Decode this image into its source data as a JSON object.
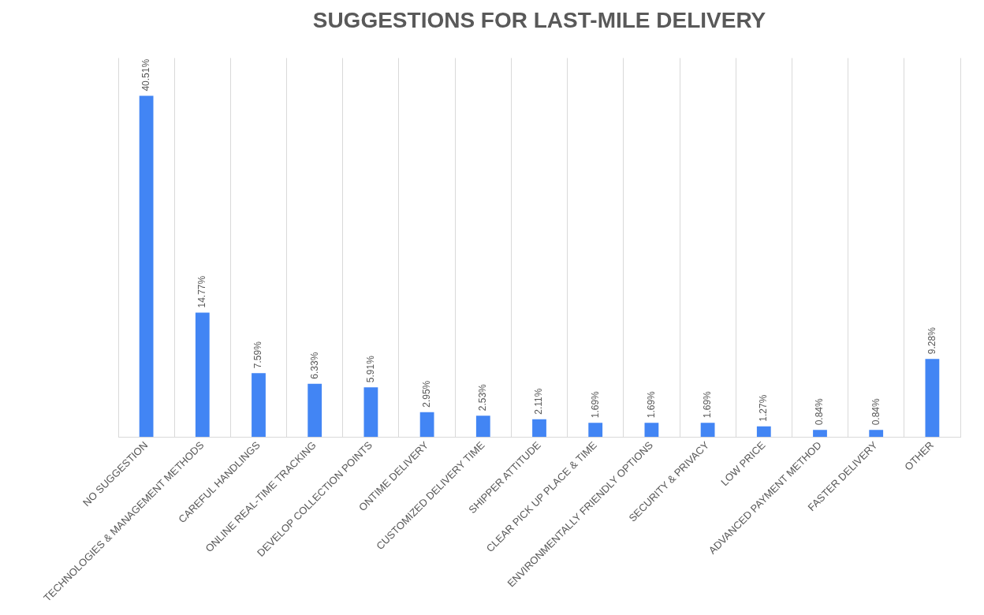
{
  "chart_data": {
    "type": "bar",
    "title": "SUGGESTIONS FOR LAST-MILE DELIVERY",
    "categories": [
      "NO SUGGESTION",
      "TECHNOLOGIES & MANAGEMENT METHODS",
      "CAREFUL HANDLINGS",
      "ONLINE REAL-TIME TRACKING",
      "DEVELOP COLLECTION POINTS",
      "ONTIME DELIVERY",
      "CUSTOMIZED DELIVERY TIME",
      "SHIPPER ATTITUDE",
      "CLEAR PICK UP PLACE & TIME",
      "ENVIRONMENTALLY FRIENDLY OPTIONS",
      "SECURITY & PRIVACY",
      "LOW PRICE",
      "ADVANCED PAYMENT METHOD",
      "FASTER DELIVERY",
      "OTHER"
    ],
    "values": [
      40.51,
      14.77,
      7.59,
      6.33,
      5.91,
      2.95,
      2.53,
      2.11,
      1.69,
      1.69,
      1.69,
      1.27,
      0.84,
      0.84,
      9.28
    ],
    "value_labels": [
      "40.51%",
      "14.77%",
      "7.59%",
      "6.33%",
      "5.91%",
      "2.95%",
      "2.53%",
      "2.11%",
      "1.69%",
      "1.69%",
      "1.69%",
      "1.27%",
      "0.84%",
      "0.84%",
      "9.28%"
    ],
    "color": "#4285f4",
    "grid": "x",
    "legend": false
  }
}
